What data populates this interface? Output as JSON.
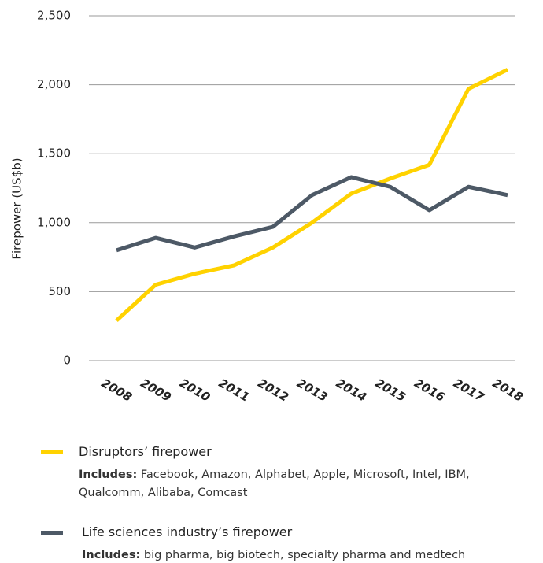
{
  "chart_data": {
    "type": "line",
    "y_label": "Firepower (US$b)",
    "categories": [
      "2008",
      "2009",
      "2010",
      "2011",
      "2012",
      "2013",
      "2014",
      "2015",
      "2016",
      "2017",
      "2018"
    ],
    "series": [
      {
        "name": "Disruptors’ firepower",
        "color": "#ffd200",
        "values": [
          290,
          550,
          630,
          690,
          820,
          1000,
          1210,
          1320,
          1420,
          1970,
          2110
        ],
        "note_label": "Includes:",
        "note": "Facebook, Amazon, Alphabet, Apple, Microsoft, Intel, IBM, Qualcomm, Alibaba, Comcast"
      },
      {
        "name": "Life sciences industry’s firepower",
        "color": "#4d5966",
        "values": [
          800,
          890,
          820,
          900,
          970,
          1200,
          1330,
          1260,
          1090,
          1260,
          1200
        ],
        "note_label": "Includes:",
        "note": "big pharma, big biotech, specialty pharma and medtech"
      }
    ],
    "ylim": [
      0,
      2500
    ],
    "yticks": [
      0,
      500,
      {
        "value": 1000,
        "label": "1,000"
      },
      {
        "value": 1500,
        "label": "1,500"
      },
      {
        "value": 2000,
        "label": "2,000"
      },
      {
        "value": 2500,
        "label": "2,500"
      }
    ],
    "grid": true
  }
}
